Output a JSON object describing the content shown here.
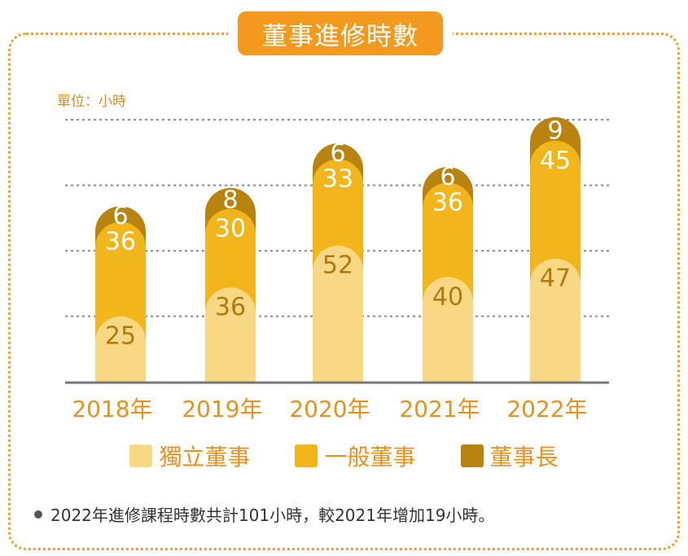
{
  "title": "董事進修時數",
  "unit_label": "單位：小時",
  "footnote": "2022年進修課程時數共計101小時，較2021年增加19小時。",
  "colors": {
    "independent": "#F8D885",
    "general": "#F2B51C",
    "chairman": "#B8830E",
    "label_light": "#ffffff",
    "label_dark": "#B07A10",
    "axis_text": "#E8901E",
    "frame": "#F0A030"
  },
  "chart_data": {
    "type": "bar",
    "stacked": true,
    "categories": [
      "2018年",
      "2019年",
      "2020年",
      "2021年",
      "2022年"
    ],
    "series": [
      {
        "name": "獨立董事",
        "values": [
          25,
          36,
          52,
          40,
          47
        ]
      },
      {
        "name": "一般董事",
        "values": [
          36,
          30,
          33,
          36,
          45
        ]
      },
      {
        "name": "董事長",
        "values": [
          6,
          8,
          6,
          6,
          9
        ]
      }
    ],
    "ylim": [
      0,
      110
    ],
    "grid": true,
    "legend_position": "bottom"
  }
}
